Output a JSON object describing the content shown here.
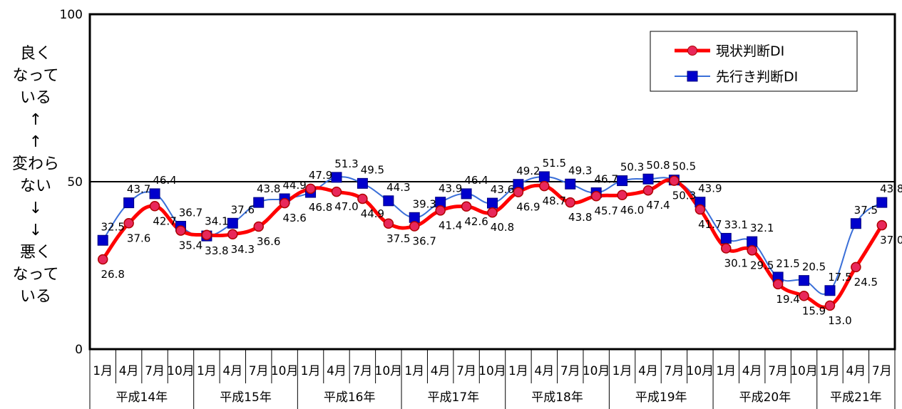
{
  "chart_data": {
    "type": "line",
    "ylim": [
      0,
      100
    ],
    "yticks": [
      "0",
      "50",
      "100"
    ],
    "reference_line": 50,
    "y_axis_annotation": [
      "良く",
      "なって",
      "いる",
      "↑",
      "↑",
      "変わら",
      "ない",
      "↓",
      "↓",
      "悪く",
      "なって",
      "いる"
    ],
    "categories": [
      "1月",
      "4月",
      "7月",
      "10月",
      "1月",
      "4月",
      "7月",
      "10月",
      "1月",
      "4月",
      "7月",
      "10月",
      "1月",
      "4月",
      "7月",
      "10月",
      "1月",
      "4月",
      "7月",
      "10月",
      "1月",
      "4月",
      "7月",
      "10月",
      "1月",
      "4月",
      "7月",
      "10月",
      "1月",
      "4月",
      "7月"
    ],
    "year_groups": [
      {
        "label": "平成14年",
        "count": 4
      },
      {
        "label": "平成15年",
        "count": 4
      },
      {
        "label": "平成16年",
        "count": 4
      },
      {
        "label": "平成17年",
        "count": 4
      },
      {
        "label": "平成18年",
        "count": 4
      },
      {
        "label": "平成19年",
        "count": 4
      },
      {
        "label": "平成20年",
        "count": 4
      },
      {
        "label": "平成21年",
        "count": 3
      }
    ],
    "series": [
      {
        "name": "現状判断DI",
        "color": "#ff0000",
        "marker_color": "#e8285a",
        "values": [
          26.8,
          37.6,
          42.7,
          35.4,
          34.1,
          34.3,
          36.6,
          43.6,
          47.9,
          47.0,
          44.9,
          37.5,
          36.7,
          41.4,
          42.6,
          40.8,
          46.9,
          48.7,
          43.8,
          45.7,
          46.0,
          47.4,
          50.3,
          41.7,
          30.1,
          29.5,
          19.4,
          15.9,
          13.0,
          24.5,
          37.0
        ],
        "labels": [
          "26.8",
          "37.6",
          "42.7",
          "35.4",
          "34.1",
          "34.3",
          "36.6",
          "43.6",
          "47.9",
          "47.0",
          "44.9",
          "37.5",
          "36.7",
          "41.4",
          "42.6",
          "40.8",
          "46.9",
          "48.7",
          "43.8",
          "45.7",
          "46.0",
          "47.4",
          "50.3",
          "41.7",
          "30.1",
          "29.5",
          "19.4",
          "15.9",
          "13.0",
          "24.5",
          "37.0"
        ]
      },
      {
        "name": "先行き判断DI",
        "color": "#3a6fd8",
        "marker_color": "#0000cc",
        "values": [
          32.5,
          43.7,
          46.4,
          36.7,
          33.8,
          37.6,
          43.8,
          44.9,
          46.8,
          51.3,
          49.5,
          44.3,
          39.3,
          43.9,
          46.4,
          43.6,
          49.2,
          51.5,
          49.3,
          46.7,
          50.3,
          50.8,
          50.5,
          43.9,
          33.1,
          32.1,
          21.5,
          20.5,
          17.5,
          37.5,
          43.8
        ],
        "labels": [
          "32.5",
          "43.7",
          "46.4",
          "36.7",
          "33.8",
          "37.6",
          "43.8",
          "44.9",
          "46.8",
          "51.3",
          "49.5",
          "44.3",
          "39.3",
          "43.9",
          "46.4",
          "43.6",
          "49.2",
          "51.5",
          "49.3",
          "46.7",
          "50.3",
          "50.8",
          "50.5",
          "43.9",
          "33.1",
          "32.1",
          "21.5",
          "20.5",
          "17.5",
          "37.5",
          "43.8"
        ]
      }
    ],
    "legend_position": "top-right",
    "grid": false
  }
}
